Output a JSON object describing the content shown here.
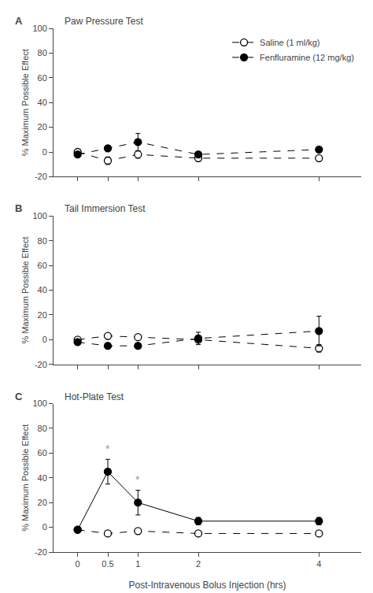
{
  "chart_data": [
    {
      "type": "line",
      "title": "Paw Pressure Test",
      "annotations": [
        {
          "text": "A"
        }
      ],
      "x": [
        0,
        0.5,
        1,
        2,
        4
      ],
      "series": [
        {
          "name": "Saline (1 ml/kg)",
          "color": "#000000",
          "marker": "open",
          "line_style": "dashed",
          "values": [
            0,
            -7,
            -2,
            -5,
            -5
          ],
          "errors": [
            1.5,
            3,
            3,
            2.5,
            2
          ]
        },
        {
          "name": "Fenfluramine (12 mg/kg)",
          "color": "#000000",
          "marker": "filled",
          "line_style": "dashed",
          "values": [
            -2,
            3,
            8,
            -2,
            2
          ],
          "errors": [
            1,
            2,
            7,
            2,
            2
          ]
        }
      ],
      "xlim": [
        -0.4,
        4.7
      ],
      "xticks": [
        0,
        0.5,
        1,
        2,
        4
      ],
      "ylim": [
        -20,
        100
      ],
      "yticks": [
        -20,
        0,
        20,
        40,
        60,
        80,
        100
      ],
      "ylabel": "% Maximum Possible Effect",
      "grid": false,
      "legend": "upper right",
      "tick_labels": "y"
    },
    {
      "type": "line",
      "title": "Tail Immersion Test",
      "annotations": [
        {
          "text": "B"
        }
      ],
      "x": [
        0,
        0.5,
        1,
        2,
        4
      ],
      "series": [
        {
          "color": "#000000",
          "marker": "open",
          "line_style": "dashed",
          "values": [
            0,
            3,
            2,
            0,
            -7
          ],
          "errors": [
            1,
            2,
            2,
            2,
            3
          ]
        },
        {
          "color": "#000000",
          "marker": "filled",
          "line_style": "dashed",
          "values": [
            -2,
            -5,
            -5,
            1,
            7
          ],
          "errors": [
            1,
            2,
            2,
            5,
            12
          ]
        }
      ],
      "xlim": [
        -0.4,
        4.7
      ],
      "xticks": [
        0,
        0.5,
        1,
        2,
        4
      ],
      "ylim": [
        -20,
        100
      ],
      "yticks": [
        -20,
        0,
        20,
        40,
        60,
        80,
        100
      ],
      "ylabel": "% Maximum Possible Effect",
      "grid": false,
      "tick_labels": "y"
    },
    {
      "type": "line",
      "title": "Hot-Plate Test",
      "annotations": [
        {
          "text": "C"
        },
        {
          "text": "*",
          "x": 0.5,
          "color": "#999999"
        },
        {
          "text": "*",
          "x": 1,
          "color": "#999999"
        }
      ],
      "x": [
        0,
        0.5,
        1,
        2,
        4
      ],
      "series": [
        {
          "color": "#000000",
          "marker": "open",
          "line_style": "dashed",
          "values": [
            -2,
            -5,
            -3,
            -5,
            -5
          ],
          "errors": [
            1,
            1,
            2,
            2,
            2
          ]
        },
        {
          "color": "#000000",
          "marker": "filled",
          "line_style": "solid",
          "values": [
            -2,
            45,
            20,
            5,
            5
          ],
          "errors": [
            1,
            10,
            10,
            3,
            3
          ]
        }
      ],
      "xlim": [
        -0.4,
        4.7
      ],
      "xticks": [
        0,
        0.5,
        1,
        2,
        4
      ],
      "ylim": [
        -20,
        100
      ],
      "yticks": [
        -20,
        0,
        20,
        40,
        60,
        80,
        100
      ],
      "xlabel": "Post-Intravenous Bolus Injection (hrs)",
      "ylabel": "% Maximum Possible Effect",
      "grid": false
    }
  ]
}
